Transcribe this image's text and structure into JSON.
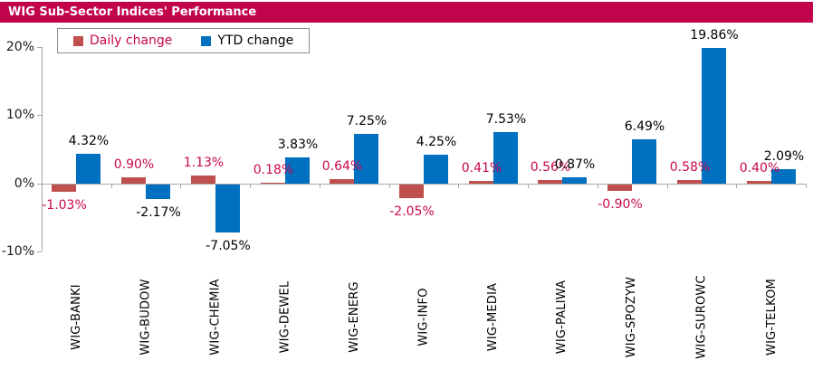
{
  "title": "WIG Sub-Sector Indices' Performance",
  "colors": {
    "title_bg": "#C2034B",
    "title_text": "#FFFFFF",
    "daily_bar": "#C0504D",
    "ytd_bar": "#0070C0",
    "daily_label_text": "#C9074F",
    "ytd_label_text": "#000000",
    "axis_line": "#A6A6A6",
    "tick_text": "#1A1A1A",
    "category_text": "#000000",
    "legend_border": "#8C8C8C"
  },
  "legend": {
    "items": [
      {
        "label": "Daily change",
        "swatch": "daily_bar",
        "text_color": "daily_label_text"
      },
      {
        "label": "YTD change",
        "swatch": "ytd_bar",
        "text_color": "ytd_label_text"
      }
    ]
  },
  "chart_data": {
    "type": "bar",
    "title": "WIG Sub-Sector Indices' Performance",
    "categories": [
      "WIG-BANKI",
      "WIG-BUDOW",
      "WIG-CHEMIA",
      "WIG-DEWEL",
      "WIG-ENERG",
      "WIG-INFO",
      "WIG-MEDIA",
      "WIG-PALIWA",
      "WIG-SPOZYW",
      "WIG-SUROWC",
      "WIG-TELKOM"
    ],
    "series": [
      {
        "name": "Daily change",
        "values": [
          -1.03,
          0.9,
          1.13,
          0.18,
          0.64,
          -2.05,
          0.41,
          0.56,
          -0.9,
          0.58,
          0.4
        ]
      },
      {
        "name": "YTD change",
        "values": [
          4.32,
          -2.17,
          -7.05,
          3.83,
          7.25,
          4.25,
          7.53,
          0.87,
          6.49,
          19.86,
          2.09
        ]
      }
    ],
    "ylim": [
      -10,
      20
    ],
    "y_ticks": [
      {
        "label": "20%",
        "value": 20
      },
      {
        "label": "10%",
        "value": 10
      },
      {
        "label": "0%",
        "value": 0
      },
      {
        "label": "-10%",
        "value": -10
      }
    ],
    "value_suffix": "%",
    "grid": false,
    "legend_position": "top-left"
  }
}
